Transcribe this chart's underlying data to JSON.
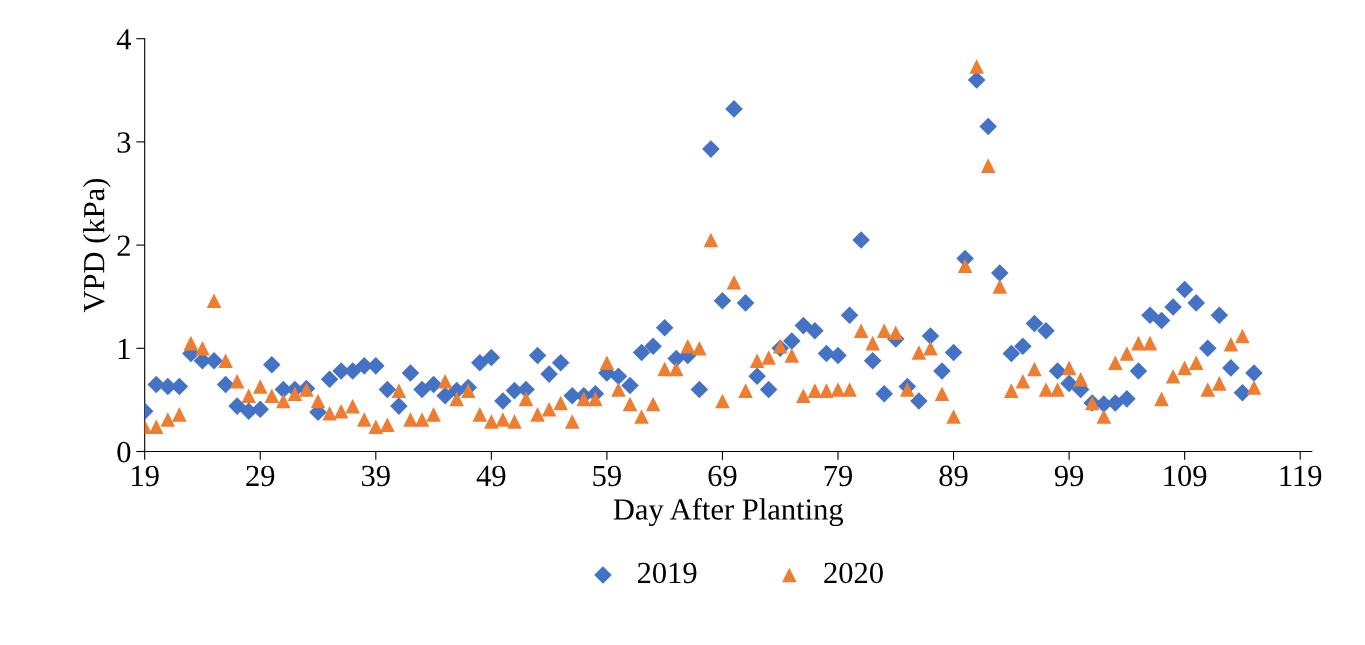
{
  "chart_data": {
    "type": "scatter",
    "xlabel": "Day After Planting",
    "ylabel": "VPD (kPa)",
    "x": [
      19,
      20,
      21,
      22,
      23,
      24,
      25,
      26,
      27,
      28,
      29,
      30,
      31,
      32,
      33,
      34,
      35,
      36,
      37,
      38,
      39,
      40,
      41,
      42,
      43,
      44,
      45,
      46,
      47,
      48,
      49,
      50,
      51,
      52,
      53,
      54,
      55,
      56,
      57,
      58,
      59,
      60,
      61,
      62,
      63,
      64,
      65,
      66,
      67,
      68,
      69,
      70,
      71,
      72,
      73,
      74,
      75,
      76,
      77,
      78,
      79,
      80,
      81,
      82,
      83,
      84,
      85,
      86,
      87,
      88,
      89,
      90,
      91,
      92,
      93,
      94,
      95,
      96,
      97,
      98,
      99,
      100,
      101,
      102,
      103,
      104,
      105,
      106,
      107,
      108,
      109,
      110,
      111,
      112,
      113,
      114,
      115
    ],
    "series": [
      {
        "name": "2019",
        "color": "#4472c4",
        "marker": "diamond",
        "values": [
          0.39,
          0.65,
          0.63,
          0.63,
          0.95,
          0.88,
          0.88,
          0.65,
          0.44,
          0.39,
          0.41,
          0.84,
          0.6,
          0.6,
          0.61,
          0.38,
          0.7,
          0.78,
          0.78,
          0.83,
          0.83,
          0.6,
          0.44,
          0.76,
          0.6,
          0.65,
          0.54,
          0.59,
          0.62,
          0.86,
          0.91,
          0.49,
          0.59,
          0.6,
          0.93,
          0.75,
          0.86,
          0.54,
          0.54,
          0.56,
          0.76,
          0.73,
          0.64,
          0.96,
          1.02,
          1.2,
          0.9,
          0.93,
          0.6,
          2.93,
          1.46,
          3.32,
          1.44,
          0.73,
          0.6,
          1.0,
          1.07,
          1.22,
          1.17,
          0.95,
          0.93,
          1.32,
          2.05,
          0.88,
          0.56,
          1.09,
          0.63,
          0.49,
          1.12,
          0.78,
          0.96,
          1.87,
          3.6,
          3.15,
          1.73,
          0.95,
          1.02,
          1.24,
          1.17,
          0.78,
          0.66,
          0.6,
          0.47,
          0.46,
          0.47,
          0.51,
          0.78,
          1.32,
          1.27,
          1.4,
          1.57,
          1.44,
          1.0,
          1.32,
          0.81,
          0.57,
          0.76
        ]
      },
      {
        "name": "2020",
        "color": "#ed7d31",
        "marker": "triangle",
        "values": [
          0.24,
          0.24,
          0.31,
          0.36,
          1.05,
          1.0,
          1.46,
          0.88,
          0.68,
          0.54,
          0.63,
          0.54,
          0.49,
          0.56,
          0.6,
          0.49,
          0.37,
          0.39,
          0.44,
          0.31,
          0.24,
          0.26,
          0.59,
          0.31,
          0.31,
          0.36,
          0.68,
          0.51,
          0.59,
          0.36,
          0.29,
          0.31,
          0.29,
          0.51,
          0.36,
          0.41,
          0.47,
          0.29,
          0.51,
          0.51,
          0.86,
          0.6,
          0.46,
          0.34,
          0.46,
          0.8,
          0.8,
          1.02,
          1.0,
          2.05,
          0.49,
          1.64,
          0.59,
          0.88,
          0.91,
          1.02,
          0.93,
          0.54,
          0.59,
          0.59,
          0.6,
          0.6,
          1.17,
          1.05,
          1.17,
          1.15,
          0.6,
          0.96,
          1.0,
          0.56,
          0.34,
          1.8,
          3.73,
          2.77,
          1.6,
          0.59,
          0.68,
          0.8,
          0.6,
          0.6,
          0.81,
          0.7,
          0.47,
          0.34,
          0.86,
          0.95,
          1.05,
          1.05,
          0.51,
          0.73,
          0.81,
          0.86,
          0.6,
          0.66,
          1.04,
          1.12,
          0.62
        ]
      }
    ],
    "xlim": [
      19,
      120
    ],
    "xticks": [
      19,
      29,
      39,
      49,
      59,
      69,
      79,
      89,
      99,
      109,
      119
    ],
    "ylim": [
      0,
      4
    ],
    "yticks": [
      0,
      1,
      2,
      3,
      4
    ],
    "grid": false,
    "legend": "bottom"
  }
}
